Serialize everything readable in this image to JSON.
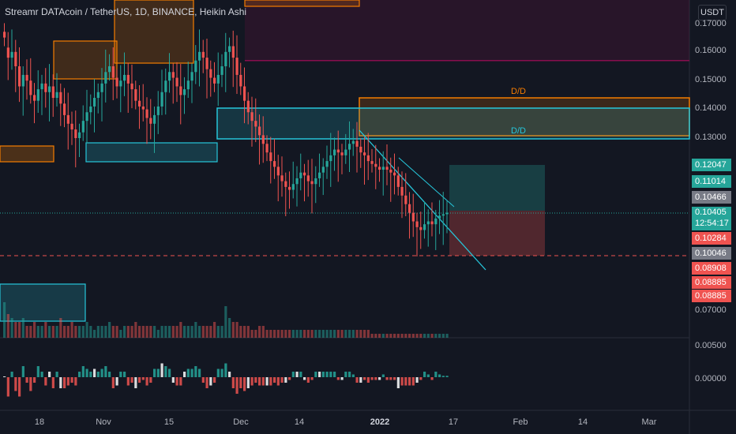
{
  "chart_title": "Streamr DATAcoin / TetherUS, 1D, BINANCE, Heikin Ashi",
  "currency_button": "USDT",
  "colors": {
    "background": "#131722",
    "bull": "#26a69a",
    "bear": "#ef5350",
    "neutral": "#b2b5be",
    "demand_orange": "#f57c00",
    "teal_zone": "#26c6da",
    "supply_maroon": "#880e4f"
  },
  "price_axis_ticks": [
    "0.17000",
    "0.16000",
    "0.15000",
    "0.14000",
    "0.13000",
    "0.07000"
  ],
  "indicator_axis_ticks": [
    "0.00500",
    "0.00000"
  ],
  "price_tags": [
    {
      "label": "0.12047",
      "bg": "#26a69a"
    },
    {
      "label": "0.11014",
      "bg": "#26a69a"
    },
    {
      "label": "0.10466",
      "bg": "#787b86"
    },
    {
      "label": "0.10405",
      "sub": "12:54:17",
      "bg": "#26a69a"
    },
    {
      "label": "0.10284",
      "bg": "#ef5350"
    },
    {
      "label": "0.10046",
      "bg": "#787b86"
    },
    {
      "label": "0.08908",
      "bg": "#ef5350"
    },
    {
      "label": "0.08885",
      "bg": "#ef5350"
    },
    {
      "label": "0.08885",
      "bg": "#ef5350"
    }
  ],
  "time_axis_ticks": [
    "18",
    "Nov",
    "15",
    "Dec",
    "14",
    "2022",
    "17",
    "Feb",
    "14",
    "Mar"
  ],
  "zone_labels": [
    {
      "text": "D/D",
      "color": "#f57c00"
    },
    {
      "text": "D/D",
      "color": "#26c6da"
    }
  ],
  "chart_data": {
    "type": "candlestick",
    "style": "Heikin Ashi",
    "title": "Streamr DATAcoin / TetherUS, 1D, BINANCE, Heikin Ashi",
    "y_range": [
      0.06,
      0.175
    ],
    "last_price": 0.10405,
    "closes": [
      0.165,
      0.158,
      0.16,
      0.155,
      0.148,
      0.152,
      0.15,
      0.145,
      0.143,
      0.147,
      0.149,
      0.146,
      0.148,
      0.144,
      0.146,
      0.142,
      0.138,
      0.135,
      0.133,
      0.13,
      0.132,
      0.136,
      0.139,
      0.141,
      0.144,
      0.146,
      0.149,
      0.153,
      0.155,
      0.151,
      0.148,
      0.15,
      0.152,
      0.149,
      0.147,
      0.143,
      0.141,
      0.14,
      0.137,
      0.135,
      0.138,
      0.141,
      0.146,
      0.15,
      0.153,
      0.151,
      0.148,
      0.145,
      0.147,
      0.15,
      0.153,
      0.157,
      0.16,
      0.158,
      0.154,
      0.151,
      0.149,
      0.152,
      0.155,
      0.16,
      0.162,
      0.158,
      0.152,
      0.148,
      0.143,
      0.139,
      0.136,
      0.134,
      0.131,
      0.128,
      0.125,
      0.122,
      0.12,
      0.117,
      0.115,
      0.113,
      0.112,
      0.114,
      0.116,
      0.118,
      0.117,
      0.115,
      0.114,
      0.116,
      0.118,
      0.12,
      0.122,
      0.124,
      0.126,
      0.125,
      0.124,
      0.126,
      0.128,
      0.129,
      0.127,
      0.125,
      0.124,
      0.122,
      0.121,
      0.12,
      0.119,
      0.12,
      0.119,
      0.118,
      0.117,
      0.113,
      0.11,
      0.107,
      0.104,
      0.101,
      0.099,
      0.098,
      0.1,
      0.101,
      0.1,
      0.102,
      0.103,
      0.1035,
      0.104
    ],
    "volume": [
      9,
      6,
      5,
      4,
      4,
      5,
      3,
      3,
      4,
      3,
      3,
      4,
      3,
      3,
      3,
      5,
      3,
      3,
      4,
      3,
      3,
      3,
      4,
      3,
      2,
      3,
      3,
      3,
      4,
      3,
      3,
      2,
      3,
      3,
      3,
      4,
      3,
      3,
      3,
      3,
      3,
      2,
      3,
      3,
      3,
      3,
      3,
      4,
      3,
      3,
      3,
      4,
      3,
      3,
      3,
      3,
      4,
      3,
      3,
      8,
      5,
      4,
      4,
      3,
      3,
      3,
      2,
      2,
      3,
      3,
      2,
      2,
      2,
      2,
      2,
      2,
      2,
      2,
      2,
      2,
      2,
      2,
      2,
      2,
      2,
      2,
      2,
      2,
      2,
      2,
      2,
      2,
      2,
      2,
      2,
      2,
      2,
      2,
      1,
      1,
      1,
      1,
      1,
      1,
      1,
      1,
      1,
      1,
      1,
      1,
      1,
      1,
      1,
      1,
      1,
      1,
      1,
      1,
      1
    ],
    "zones": [
      {
        "type": "supply",
        "color": "#880e4f",
        "from": 0.157,
        "to": 0.175
      },
      {
        "type": "demand",
        "label": "D/D",
        "color": "#f57c00",
        "from": 0.131,
        "to": 0.145
      },
      {
        "type": "demand",
        "label": "D/D",
        "color": "#26c6da",
        "from": 0.13,
        "to": 0.141
      },
      {
        "type": "target",
        "color": "#26a69a",
        "from": 0.10466,
        "to": 0.12047
      },
      {
        "type": "stop",
        "color": "#ef5350",
        "from": 0.10046,
        "to": 0.10466
      }
    ]
  }
}
